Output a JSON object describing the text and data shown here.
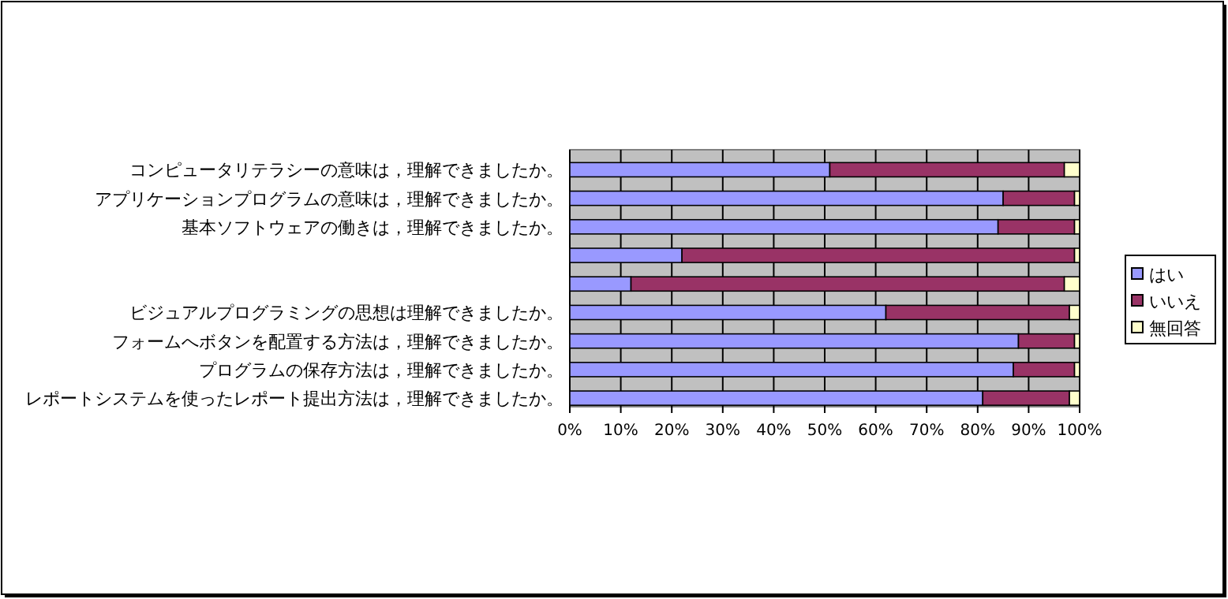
{
  "chart_data": {
    "type": "bar",
    "orientation": "horizontal",
    "stacked": true,
    "categories": [
      "コンピュータリテラシーの意味は，理解できましたか。",
      "アプリケーションプログラムの意味は，理解できましたか。",
      "基本ソフトウェアの働きは，理解できましたか。",
      null,
      null,
      "ビジュアルプログラミングの思想は理解できましたか。",
      "フォームへボタンを配置する方法は，理解できましたか。",
      "プログラムの保存方法は，理解できましたか。",
      "レポートシステムを使ったレポート提出方法は，理解できましたか。"
    ],
    "series": [
      {
        "name": "はい",
        "color": "#9999ff",
        "values": [
          51,
          85,
          84,
          22,
          12,
          62,
          88,
          87,
          81
        ]
      },
      {
        "name": "いいえ",
        "color": "#993366",
        "values": [
          46,
          14,
          15,
          77,
          85,
          36,
          11,
          12,
          17
        ]
      },
      {
        "name": "無回答",
        "color": "#ffffcc",
        "values": [
          3,
          1,
          1,
          1,
          3,
          2,
          1,
          1,
          2
        ]
      }
    ],
    "xlim": [
      0,
      100
    ],
    "xticks": [
      {
        "value": 0,
        "label": "0%"
      },
      {
        "value": 10,
        "label": "10%"
      },
      {
        "value": 20,
        "label": "20%"
      },
      {
        "value": 30,
        "label": "30%"
      },
      {
        "value": 40,
        "label": "40%"
      },
      {
        "value": 50,
        "label": "50%"
      },
      {
        "value": 60,
        "label": "60%"
      },
      {
        "value": 70,
        "label": "70%"
      },
      {
        "value": 80,
        "label": "80%"
      },
      {
        "value": 90,
        "label": "90%"
      },
      {
        "value": 100,
        "label": "100%"
      }
    ],
    "grid": "x",
    "legend": "right"
  }
}
